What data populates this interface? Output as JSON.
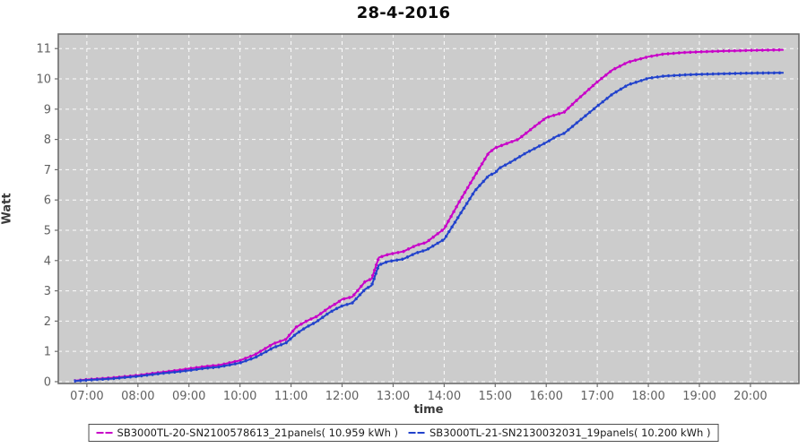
{
  "chart_data": {
    "type": "line",
    "title": "28-4-2016",
    "xlabel": "time",
    "ylabel": "Watt",
    "legend_position": "bottom",
    "grid": "white dashed gridlines on gray plot background",
    "plot_background": "#cccccc",
    "grid_color": "#ffffff",
    "axis_color": "#6e6e6e",
    "tick_label_color": "#616161",
    "xlim_hours": [
      6.44,
      20.95
    ],
    "ylim": [
      -0.06,
      11.48
    ],
    "x_ticks_hours": [
      7,
      8,
      9,
      10,
      11,
      12,
      13,
      14,
      15,
      16,
      17,
      18,
      19,
      20
    ],
    "x_tick_labels": [
      "07:00",
      "08:00",
      "09:00",
      "10:00",
      "11:00",
      "12:00",
      "13:00",
      "14:00",
      "15:00",
      "16:00",
      "17:00",
      "18:00",
      "19:00",
      "20:00"
    ],
    "y_ticks": [
      0,
      1,
      2,
      3,
      4,
      5,
      6,
      7,
      8,
      9,
      10,
      11
    ],
    "y_tick_labels": [
      "0",
      "1",
      "2",
      "3",
      "4",
      "5",
      "6",
      "7",
      "8",
      "9",
      "10",
      "11"
    ],
    "series": [
      {
        "name": "SB3000TL-20-SN2100578613_21panels( 10.959 kWh )",
        "color": "#c800c8",
        "total_kwh": 10.959,
        "points": [
          [
            6.75,
            0.03
          ],
          [
            7.0,
            0.07
          ],
          [
            7.5,
            0.13
          ],
          [
            8.0,
            0.21
          ],
          [
            8.5,
            0.32
          ],
          [
            8.8,
            0.38
          ],
          [
            9.0,
            0.43
          ],
          [
            9.3,
            0.5
          ],
          [
            9.6,
            0.55
          ],
          [
            10.0,
            0.7
          ],
          [
            10.3,
            0.9
          ],
          [
            10.5,
            1.1
          ],
          [
            10.65,
            1.25
          ],
          [
            10.9,
            1.4
          ],
          [
            11.1,
            1.8
          ],
          [
            11.3,
            2.0
          ],
          [
            11.5,
            2.15
          ],
          [
            11.75,
            2.45
          ],
          [
            11.9,
            2.6
          ],
          [
            12.0,
            2.72
          ],
          [
            12.2,
            2.8
          ],
          [
            12.45,
            3.3
          ],
          [
            12.58,
            3.4
          ],
          [
            12.72,
            4.1
          ],
          [
            12.9,
            4.2
          ],
          [
            13.2,
            4.3
          ],
          [
            13.45,
            4.5
          ],
          [
            13.65,
            4.6
          ],
          [
            14.0,
            5.05
          ],
          [
            14.3,
            5.95
          ],
          [
            14.6,
            6.8
          ],
          [
            14.87,
            7.55
          ],
          [
            15.0,
            7.72
          ],
          [
            15.2,
            7.85
          ],
          [
            15.45,
            8.0
          ],
          [
            15.75,
            8.4
          ],
          [
            16.0,
            8.72
          ],
          [
            16.2,
            8.82
          ],
          [
            16.35,
            8.9
          ],
          [
            16.6,
            9.3
          ],
          [
            17.0,
            9.9
          ],
          [
            17.3,
            10.3
          ],
          [
            17.6,
            10.55
          ],
          [
            18.0,
            10.73
          ],
          [
            18.3,
            10.82
          ],
          [
            18.7,
            10.87
          ],
          [
            19.0,
            10.89
          ],
          [
            19.5,
            10.92
          ],
          [
            20.0,
            10.94
          ],
          [
            20.65,
            10.96
          ]
        ]
      },
      {
        "name": "SB3000TL-21-SN2130032031_19panels( 10.200 kWh )",
        "color": "#2142cc",
        "total_kwh": 10.2,
        "points": [
          [
            6.75,
            0.02
          ],
          [
            7.0,
            0.05
          ],
          [
            7.5,
            0.1
          ],
          [
            8.0,
            0.18
          ],
          [
            8.5,
            0.28
          ],
          [
            8.8,
            0.33
          ],
          [
            9.0,
            0.37
          ],
          [
            9.3,
            0.44
          ],
          [
            9.6,
            0.49
          ],
          [
            10.0,
            0.62
          ],
          [
            10.3,
            0.8
          ],
          [
            10.5,
            0.98
          ],
          [
            10.65,
            1.12
          ],
          [
            10.9,
            1.28
          ],
          [
            11.1,
            1.58
          ],
          [
            11.3,
            1.8
          ],
          [
            11.5,
            1.98
          ],
          [
            11.75,
            2.28
          ],
          [
            11.9,
            2.42
          ],
          [
            12.0,
            2.5
          ],
          [
            12.2,
            2.6
          ],
          [
            12.45,
            3.05
          ],
          [
            12.58,
            3.18
          ],
          [
            12.72,
            3.85
          ],
          [
            12.9,
            3.97
          ],
          [
            13.2,
            4.05
          ],
          [
            13.45,
            4.25
          ],
          [
            13.65,
            4.35
          ],
          [
            14.0,
            4.7
          ],
          [
            14.3,
            5.5
          ],
          [
            14.6,
            6.3
          ],
          [
            14.87,
            6.8
          ],
          [
            15.0,
            6.9
          ],
          [
            15.08,
            7.05
          ],
          [
            15.3,
            7.25
          ],
          [
            15.6,
            7.55
          ],
          [
            16.0,
            7.9
          ],
          [
            16.2,
            8.1
          ],
          [
            16.35,
            8.2
          ],
          [
            16.6,
            8.55
          ],
          [
            17.0,
            9.1
          ],
          [
            17.3,
            9.5
          ],
          [
            17.6,
            9.8
          ],
          [
            18.0,
            10.02
          ],
          [
            18.3,
            10.09
          ],
          [
            18.7,
            10.13
          ],
          [
            19.0,
            10.15
          ],
          [
            19.5,
            10.17
          ],
          [
            20.0,
            10.19
          ],
          [
            20.65,
            10.2
          ]
        ]
      }
    ]
  }
}
